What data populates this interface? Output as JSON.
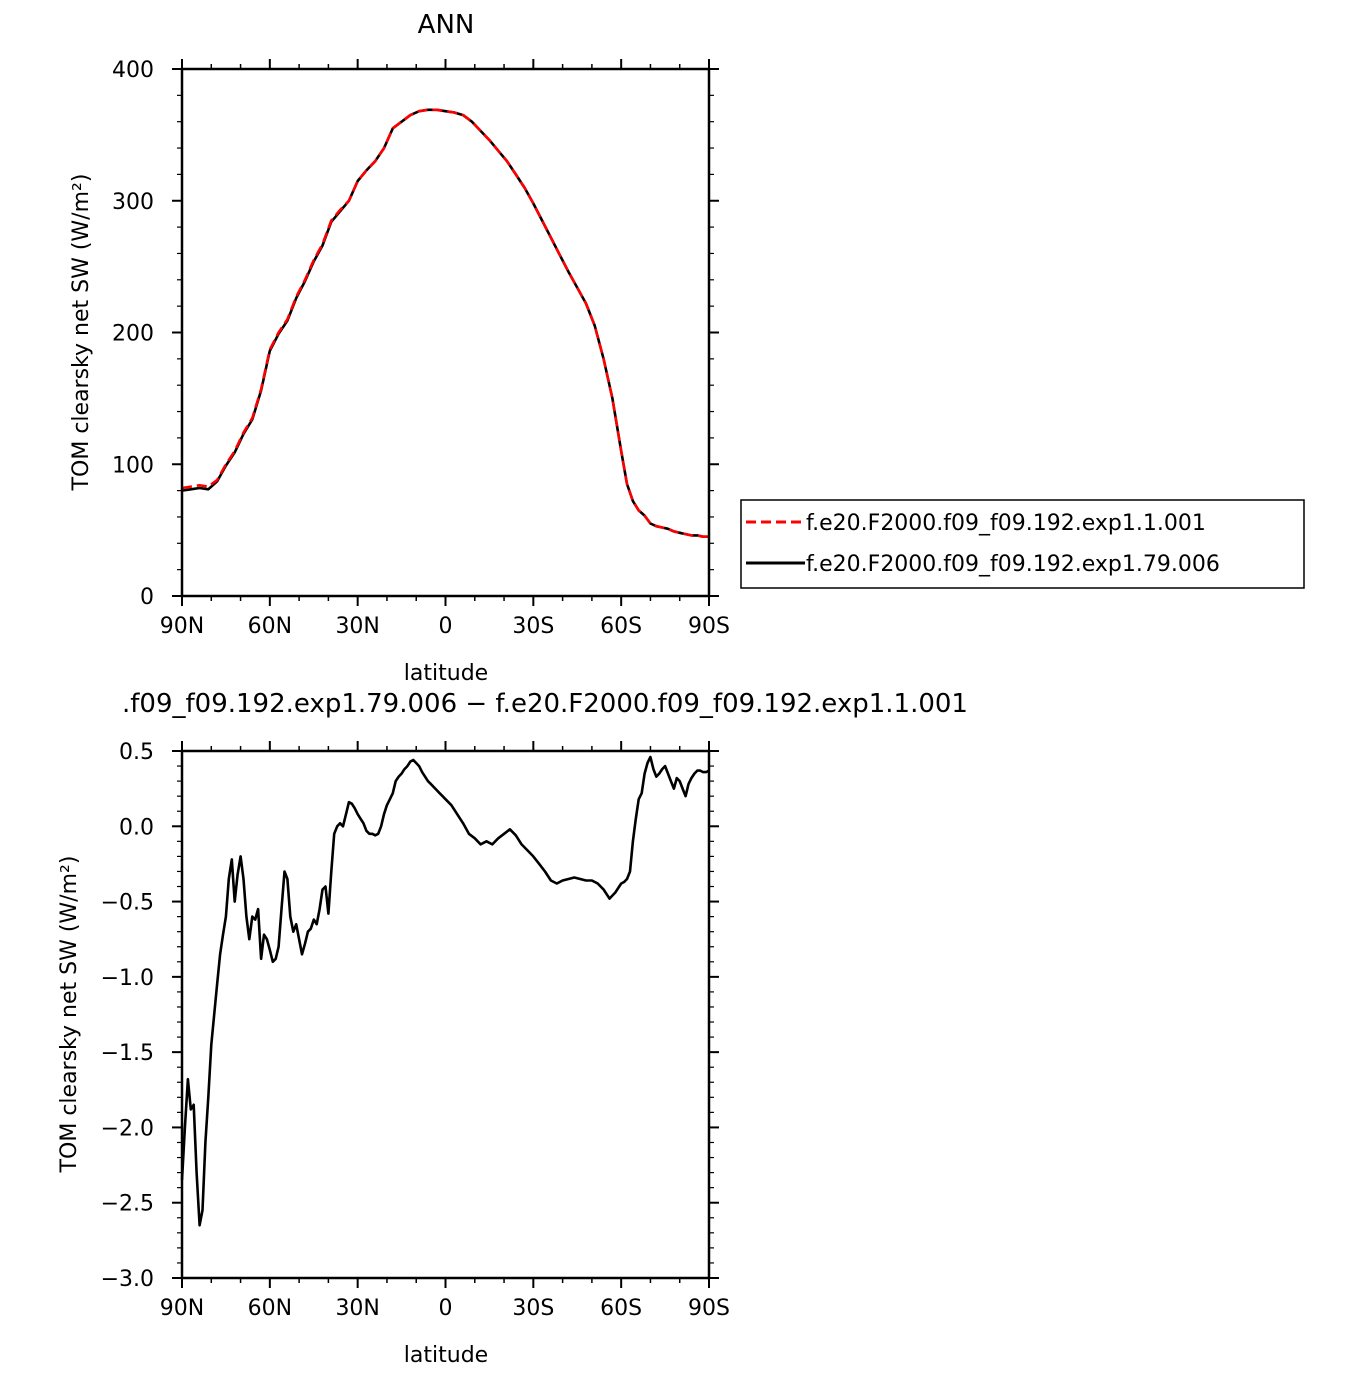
{
  "chart_data": [
    {
      "type": "line",
      "title": "ANN",
      "xlabel": "latitude",
      "ylabel": "TOM clearsky net SW (W/m²)",
      "xlim": [
        90,
        -90
      ],
      "ylim": [
        0,
        400
      ],
      "x_ticks": [
        {
          "value": 90,
          "label": "90N"
        },
        {
          "value": 60,
          "label": "60N"
        },
        {
          "value": 30,
          "label": "30N"
        },
        {
          "value": 0,
          "label": "0"
        },
        {
          "value": -30,
          "label": "30S"
        },
        {
          "value": -60,
          "label": "60S"
        },
        {
          "value": -90,
          "label": "90S"
        }
      ],
      "y_ticks": [
        {
          "value": 0,
          "label": "0"
        },
        {
          "value": 100,
          "label": "100"
        },
        {
          "value": 200,
          "label": "200"
        },
        {
          "value": 300,
          "label": "300"
        },
        {
          "value": 400,
          "label": "400"
        }
      ],
      "legend": {
        "placement": "right"
      },
      "series": [
        {
          "name": "f.e20.F2000.f09_f09.192.exp1.1.001",
          "color": "#ff0000",
          "dash": "dashed",
          "x": [
            90,
            87,
            84,
            81,
            78,
            75,
            72,
            69,
            66,
            63,
            60,
            57,
            54,
            51,
            48,
            45,
            42,
            39,
            36,
            33,
            30,
            27,
            24,
            21,
            18,
            15,
            12,
            9,
            6,
            3,
            0,
            -3,
            -6,
            -9,
            -12,
            -15,
            -18,
            -21,
            -24,
            -27,
            -30,
            -33,
            -36,
            -39,
            -42,
            -45,
            -48,
            -51,
            -54,
            -57,
            -60,
            -62,
            -64,
            -66,
            -68,
            -70,
            -72,
            -74,
            -76,
            -78,
            -80,
            -82,
            -84,
            -86,
            -88,
            -90
          ],
          "y": [
            82,
            83,
            84,
            83,
            88,
            100,
            110,
            124,
            135,
            157,
            187,
            200,
            210,
            227,
            240,
            255,
            267,
            285,
            293,
            300,
            315,
            323,
            330,
            340,
            355,
            360,
            365,
            368,
            369,
            369,
            368,
            367,
            365,
            360,
            353,
            346,
            338,
            330,
            320,
            310,
            298,
            285,
            272,
            259,
            246,
            234,
            222,
            205,
            180,
            150,
            110,
            85,
            72,
            65,
            61,
            55,
            53,
            52,
            51,
            49,
            48,
            47,
            46,
            46,
            45,
            45
          ]
        },
        {
          "name": "f.e20.F2000.f09_f09.192.exp1.79.006",
          "color": "#000000",
          "dash": "solid",
          "x": [
            90,
            87,
            84,
            81,
            78,
            75,
            72,
            69,
            66,
            63,
            60,
            57,
            54,
            51,
            48,
            45,
            42,
            39,
            36,
            33,
            30,
            27,
            24,
            21,
            18,
            15,
            12,
            9,
            6,
            3,
            0,
            -3,
            -6,
            -9,
            -12,
            -15,
            -18,
            -21,
            -24,
            -27,
            -30,
            -33,
            -36,
            -39,
            -42,
            -45,
            -48,
            -51,
            -54,
            -57,
            -60,
            -62,
            -64,
            -66,
            -68,
            -70,
            -72,
            -74,
            -76,
            -78,
            -80,
            -82,
            -84,
            -86,
            -88,
            -90
          ],
          "y": [
            80,
            81,
            82,
            81,
            87,
            99,
            109,
            123,
            134,
            156,
            186,
            199,
            209,
            226,
            239,
            254,
            266,
            284,
            292,
            300,
            315,
            323,
            330,
            340,
            355,
            360,
            365,
            368,
            369,
            369,
            368,
            367,
            365,
            360,
            353,
            346,
            338,
            330,
            320,
            310,
            298,
            285,
            272,
            259,
            246,
            234,
            222,
            205,
            180,
            150,
            110,
            85,
            72,
            65,
            61,
            55,
            53,
            52,
            51,
            49,
            48,
            47,
            46,
            46,
            45,
            45
          ]
        }
      ]
    },
    {
      "type": "line",
      "title": ".f09_f09.192.exp1.79.006 − f.e20.F2000.f09_f09.192.exp1.1.001",
      "xlabel": "latitude",
      "ylabel": "TOM clearsky net SW (W/m²)",
      "xlim": [
        90,
        -90
      ],
      "ylim": [
        -3.0,
        0.5
      ],
      "x_ticks": [
        {
          "value": 90,
          "label": "90N"
        },
        {
          "value": 60,
          "label": "60N"
        },
        {
          "value": 30,
          "label": "30N"
        },
        {
          "value": 0,
          "label": "0"
        },
        {
          "value": -30,
          "label": "30S"
        },
        {
          "value": -60,
          "label": "60S"
        },
        {
          "value": -90,
          "label": "90S"
        }
      ],
      "y_ticks": [
        {
          "value": 0.5,
          "label": "0.5"
        },
        {
          "value": 0.0,
          "label": "0.0"
        },
        {
          "value": -0.5,
          "label": "−0.5"
        },
        {
          "value": -1.0,
          "label": "−1.0"
        },
        {
          "value": -1.5,
          "label": "−1.5"
        },
        {
          "value": -2.0,
          "label": "−2.0"
        },
        {
          "value": -2.5,
          "label": "−2.5"
        },
        {
          "value": -3.0,
          "label": "−3.0"
        }
      ],
      "series": [
        {
          "color": "#000000",
          "dash": "solid",
          "x": [
            90,
            89,
            88,
            87,
            86,
            85,
            84,
            83,
            82,
            81,
            80,
            79,
            78,
            77,
            76,
            75,
            74,
            73,
            72,
            71,
            70,
            69,
            68,
            67,
            66,
            65,
            64,
            63,
            62,
            61,
            60,
            59,
            58,
            57,
            56,
            55,
            54,
            53,
            52,
            51,
            50,
            49,
            48,
            47,
            46,
            45,
            44,
            43,
            42,
            41,
            40,
            39,
            38,
            37,
            36,
            35,
            34,
            33,
            32,
            31,
            30,
            29,
            28,
            27,
            26,
            25,
            24,
            23,
            22,
            21,
            20,
            19,
            18,
            17,
            16,
            15,
            14,
            13,
            12,
            11,
            10,
            9,
            8,
            7,
            6,
            5,
            4,
            3,
            2,
            1,
            0,
            -2,
            -4,
            -6,
            -8,
            -10,
            -12,
            -14,
            -16,
            -18,
            -20,
            -22,
            -24,
            -26,
            -28,
            -30,
            -32,
            -34,
            -36,
            -38,
            -40,
            -42,
            -44,
            -46,
            -48,
            -50,
            -52,
            -54,
            -56,
            -58,
            -60,
            -61,
            -62,
            -63,
            -64,
            -65,
            -66,
            -67,
            -68,
            -69,
            -70,
            -71,
            -72,
            -73,
            -74,
            -75,
            -76,
            -77,
            -78,
            -79,
            -80,
            -81,
            -82,
            -83,
            -84,
            -85,
            -86,
            -87,
            -88,
            -89,
            -90
          ],
          "y": [
            -2.35,
            -2.0,
            -1.68,
            -1.88,
            -1.85,
            -2.3,
            -2.65,
            -2.55,
            -2.1,
            -1.8,
            -1.45,
            -1.25,
            -1.05,
            -0.85,
            -0.72,
            -0.6,
            -0.35,
            -0.22,
            -0.5,
            -0.32,
            -0.2,
            -0.35,
            -0.6,
            -0.75,
            -0.6,
            -0.62,
            -0.55,
            -0.88,
            -0.72,
            -0.75,
            -0.82,
            -0.9,
            -0.88,
            -0.8,
            -0.55,
            -0.3,
            -0.35,
            -0.6,
            -0.7,
            -0.65,
            -0.75,
            -0.85,
            -0.78,
            -0.7,
            -0.68,
            -0.62,
            -0.65,
            -0.55,
            -0.42,
            -0.4,
            -0.58,
            -0.3,
            -0.05,
            0.0,
            0.02,
            0.0,
            0.08,
            0.16,
            0.15,
            0.12,
            0.08,
            0.05,
            0.02,
            -0.03,
            -0.05,
            -0.05,
            -0.06,
            -0.05,
            0.0,
            0.08,
            0.14,
            0.18,
            0.22,
            0.3,
            0.33,
            0.35,
            0.38,
            0.4,
            0.43,
            0.44,
            0.42,
            0.4,
            0.36,
            0.33,
            0.3,
            0.28,
            0.26,
            0.24,
            0.22,
            0.2,
            0.18,
            0.14,
            0.08,
            0.02,
            -0.05,
            -0.08,
            -0.12,
            -0.1,
            -0.12,
            -0.08,
            -0.05,
            -0.02,
            -0.06,
            -0.12,
            -0.16,
            -0.2,
            -0.25,
            -0.3,
            -0.36,
            -0.38,
            -0.36,
            -0.35,
            -0.34,
            -0.35,
            -0.36,
            -0.36,
            -0.38,
            -0.42,
            -0.48,
            -0.44,
            -0.38,
            -0.37,
            -0.35,
            -0.3,
            -0.1,
            0.05,
            0.18,
            0.22,
            0.35,
            0.42,
            0.46,
            0.38,
            0.33,
            0.35,
            0.38,
            0.4,
            0.35,
            0.3,
            0.25,
            0.32,
            0.3,
            0.25,
            0.2,
            0.28,
            0.32,
            0.35,
            0.37,
            0.37,
            0.36,
            0.36,
            0.37
          ]
        }
      ]
    }
  ]
}
